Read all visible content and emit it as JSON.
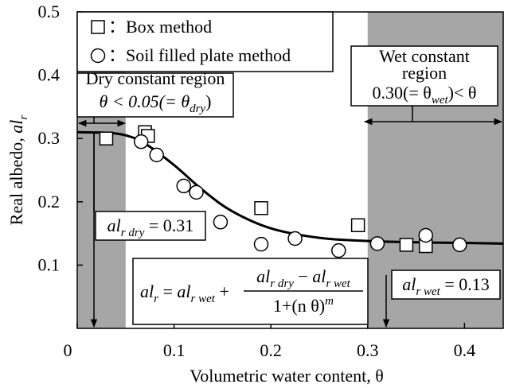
{
  "chart_data": {
    "type": "scatter",
    "xlabel": [
      {
        "text": "Volumetric water content,  θ"
      }
    ],
    "ylabel": [
      {
        "text": "Real albedo, "
      },
      {
        "text": "al",
        "italic": true
      },
      {
        "text": "r",
        "sub": true,
        "italic": true
      }
    ],
    "xlim": [
      0,
      0.44
    ],
    "ylim": [
      0,
      0.5
    ],
    "xticks": [
      0,
      0.1,
      0.2,
      0.3,
      0.4
    ],
    "yticks": [
      0.1,
      0.2,
      0.3,
      0.4,
      0.5
    ],
    "shaded_regions": [
      [
        0,
        0.05
      ],
      [
        0.3,
        0.44
      ]
    ],
    "shade_color": "#a6a6a6",
    "series": [
      {
        "name": "：Box method",
        "marker": "square",
        "color": "#000000",
        "x": [
          0.03,
          0.07,
          0.073,
          0.19,
          0.29,
          0.34,
          0.36
        ],
        "values": [
          0.3,
          0.31,
          0.304,
          0.19,
          0.163,
          0.132,
          0.13
        ]
      },
      {
        "name": "：Soil filled plate method",
        "marker": "circle",
        "color": "#000000",
        "x": [
          0.066,
          0.082,
          0.11,
          0.123,
          0.148,
          0.19,
          0.225,
          0.27,
          0.31,
          0.36,
          0.395
        ],
        "values": [
          0.295,
          0.274,
          0.225,
          0.215,
          0.168,
          0.133,
          0.142,
          0.123,
          0.134,
          0.147,
          0.132
        ]
      },
      {
        "marker": "line",
        "color": "#000000",
        "x": [
          0,
          0.03,
          0.05,
          0.07,
          0.1,
          0.13,
          0.16,
          0.2,
          0.25,
          0.3,
          0.35,
          0.4,
          0.44
        ],
        "values": [
          0.31,
          0.309,
          0.305,
          0.292,
          0.258,
          0.218,
          0.185,
          0.158,
          0.143,
          0.138,
          0.136,
          0.135,
          0.134
        ]
      }
    ],
    "annotations": [
      {
        "lines": [
          [
            {
              "text": "Dry constant region"
            }
          ],
          [
            {
              "text": "θ < 0.05(= θ",
              "italic": true
            },
            {
              "text": "dry",
              "sub": true,
              "italic": true
            },
            {
              "text": ")"
            }
          ]
        ]
      },
      {
        "lines": [
          [
            {
              "text": "Wet constant"
            }
          ],
          [
            {
              "text": "region"
            }
          ],
          [
            {
              "text": "0.30(= θ"
            },
            {
              "text": "wet",
              "sub": true,
              "italic": true
            },
            {
              "text": ")< θ"
            }
          ]
        ]
      },
      {
        "lines": [
          [
            {
              "text": "al",
              "italic": true
            },
            {
              "text": "r dry",
              "sub": true,
              "italic": true
            },
            {
              "text": " = 0.31"
            }
          ]
        ]
      },
      {
        "lines": [
          [
            {
              "text": "al",
              "italic": true
            },
            {
              "text": "r wet",
              "sub": true,
              "italic": true
            },
            {
              "text": " = 0.13"
            }
          ]
        ]
      }
    ],
    "formula": {
      "lhs": [
        {
          "text": "al",
          "italic": true
        },
        {
          "text": "r",
          "sub": true,
          "italic": true
        },
        {
          "text": " = "
        },
        {
          "text": "al",
          "italic": true
        },
        {
          "text": "r wet",
          "sub": true,
          "italic": true
        },
        {
          "text": " +"
        }
      ],
      "numerator": [
        {
          "text": "al",
          "italic": true
        },
        {
          "text": "r dry",
          "sub": true,
          "italic": true
        },
        {
          "text": " − "
        },
        {
          "text": "al",
          "italic": true
        },
        {
          "text": "r wet",
          "sub": true,
          "italic": true
        }
      ],
      "denominator": [
        {
          "text": "1+(n θ)",
          "italic": false
        },
        {
          "text": "m",
          "sup": true,
          "italic": true
        }
      ]
    }
  }
}
